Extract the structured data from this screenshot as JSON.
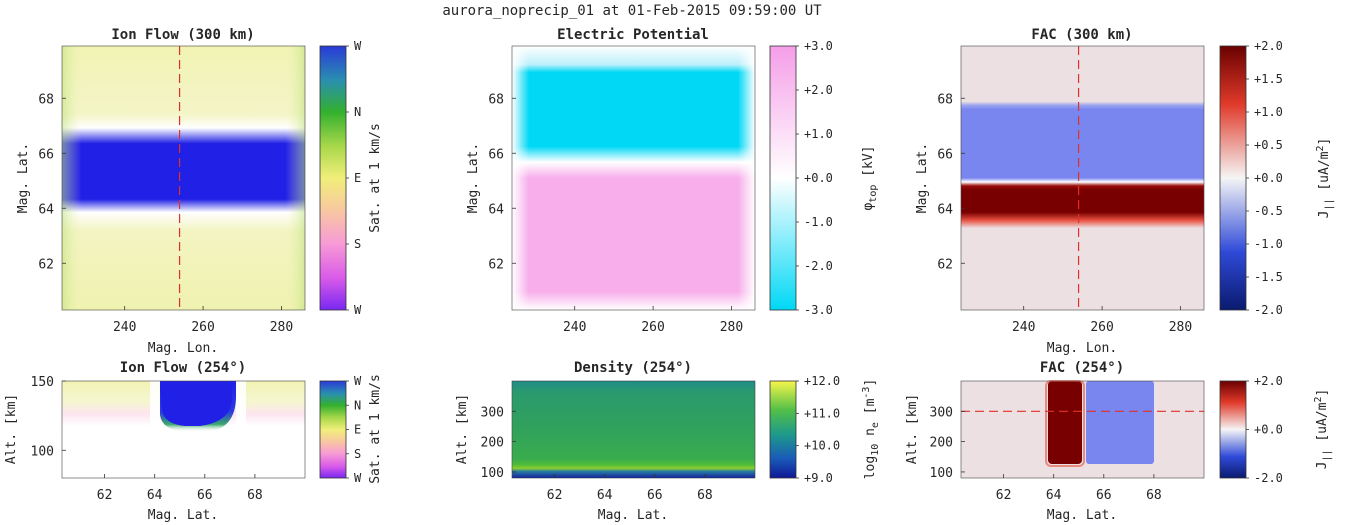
{
  "suptitle": "aurora_noprecip_01 at 01-Feb-2015 09:59:00 UT",
  "colors": {
    "blue_flow": "#2020e6",
    "yellow_flow": "#f1f3b4",
    "cyan": "#00d8f5",
    "pink": "#f7aeeb",
    "fac_red": "#780000",
    "fac_blue": "#7a86f0",
    "fac_bg": "#ece0e3",
    "cut_line": "#e0302a"
  },
  "chart_data": [
    {
      "id": "ion_flow_300",
      "type": "heatmap",
      "title": "Ion Flow (300 km)",
      "xlabel": "Mag. Lon.",
      "ylabel": "Mag. Lat.",
      "xlim": [
        224,
        286
      ],
      "ylim": [
        60.3,
        69.9
      ],
      "xticks": [
        240,
        260,
        280
      ],
      "yticks": [
        62,
        64,
        66,
        68
      ],
      "cut_x": 254,
      "colorbar": {
        "label": "Sat. at 1 km/s",
        "ticks": [
          "W",
          "N",
          "E",
          "S",
          "W"
        ]
      },
      "bands": [
        {
          "lat_min": 66.1,
          "lat_max": 70.0,
          "color": "yellow"
        },
        {
          "lat_min": 64.2,
          "lat_max": 66.1,
          "color": "blue"
        },
        {
          "lat_min": 60.3,
          "lat_max": 64.2,
          "color": "yellow"
        }
      ]
    },
    {
      "id": "electric_potential",
      "type": "heatmap",
      "title": "Electric Potential",
      "ylabel": "Mag. Lat.",
      "xlim": [
        224,
        286
      ],
      "ylim": [
        60.3,
        69.9
      ],
      "xticks": [
        240,
        260,
        280
      ],
      "yticks": [
        62,
        64,
        66,
        68
      ],
      "colorbar": {
        "label": "φtop [kV]",
        "range": [
          -3.0,
          3.0
        ],
        "ticks": [
          "+3.0",
          "+2.0",
          "+1.0",
          "+0.0",
          "-1.0",
          "-2.0",
          "-3.0"
        ]
      },
      "bands": [
        {
          "lat_min": 65.9,
          "lat_max": 69.3,
          "value": -3.0
        },
        {
          "lat_min": 60.6,
          "lat_max": 65.1,
          "value": 3.0
        }
      ]
    },
    {
      "id": "fac_300",
      "type": "heatmap",
      "title": "FAC (300 km)",
      "xlabel": "Mag. Lon.",
      "ylabel": "Mag. Lat.",
      "xlim": [
        224,
        286
      ],
      "ylim": [
        60.3,
        69.9
      ],
      "xticks": [
        240,
        260,
        280
      ],
      "yticks": [
        62,
        64,
        66,
        68
      ],
      "cut_x": 254,
      "colorbar": {
        "label": "J|| [uA/m2]",
        "range": [
          -2.0,
          2.0
        ],
        "ticks": [
          "+2.0",
          "+1.5",
          "+1.0",
          "+0.5",
          "+0.0",
          "-0.5",
          "-1.0",
          "-1.5",
          "-2.0"
        ]
      },
      "bands": [
        {
          "lat_min": 65.2,
          "lat_max": 67.8,
          "value": -1.0
        },
        {
          "lat_min": 63.9,
          "lat_max": 65.1,
          "value": 2.0
        }
      ]
    },
    {
      "id": "ion_flow_254",
      "type": "heatmap",
      "title": "Ion Flow (254°)",
      "xlabel": "Mag. Lat.",
      "ylabel": "Alt. [km]",
      "xlim": [
        60.3,
        70.0
      ],
      "ylim": [
        80,
        150
      ],
      "xticks": [
        62,
        64,
        66,
        68
      ],
      "yticks": [
        100,
        150
      ],
      "colorbar": {
        "label": "Sat. at 1 km/s",
        "ticks": [
          "W",
          "N",
          "E",
          "S",
          "W"
        ]
      },
      "regions": [
        {
          "lat_min": 64.6,
          "lat_max": 66.9,
          "alt_min": 120,
          "alt_max": 150,
          "color": "blue"
        },
        {
          "lat_min": 60.3,
          "lat_max": 70.0,
          "alt_min": 125,
          "alt_max": 150,
          "color": "yellow"
        }
      ]
    },
    {
      "id": "density_254",
      "type": "heatmap",
      "title": "Density (254°)",
      "xlabel": "Mag. Lat.",
      "ylabel": "Alt. [km]",
      "xlim": [
        60.3,
        70.0
      ],
      "ylim": [
        80,
        400
      ],
      "xticks": [
        62,
        64,
        66,
        68
      ],
      "yticks": [
        100,
        200,
        300
      ],
      "colorbar": {
        "label": "log10 ne [m-3]",
        "range": [
          9.0,
          12.0
        ],
        "ticks": [
          "+12.0",
          "+11.0",
          "+10.0",
          "+9.0"
        ]
      },
      "profile": [
        {
          "alt": 80,
          "value": 9.0
        },
        {
          "alt": 100,
          "value": 10.5
        },
        {
          "alt": 150,
          "value": 10.4
        },
        {
          "alt": 250,
          "value": 10.3
        },
        {
          "alt": 400,
          "value": 10.0
        }
      ]
    },
    {
      "id": "fac_254",
      "type": "heatmap",
      "title": "FAC (254°)",
      "xlabel": "Mag. Lat.",
      "ylabel": "Alt. [km]",
      "xlim": [
        60.3,
        70.0
      ],
      "ylim": [
        80,
        400
      ],
      "xticks": [
        62,
        64,
        66,
        68
      ],
      "yticks": [
        100,
        200,
        300
      ],
      "cut_y": 300,
      "colorbar": {
        "label": "J|| [uA/m2]",
        "range": [
          -2.0,
          2.0
        ],
        "ticks": [
          "+2.0",
          "+0.0",
          "-2.0"
        ]
      },
      "regions": [
        {
          "lat_min": 63.8,
          "lat_max": 65.1,
          "alt_min": 120,
          "alt_max": 400,
          "value": 2.0
        },
        {
          "lat_min": 65.2,
          "lat_max": 68.0,
          "alt_min": 120,
          "alt_max": 400,
          "value": -1.0
        }
      ]
    }
  ]
}
